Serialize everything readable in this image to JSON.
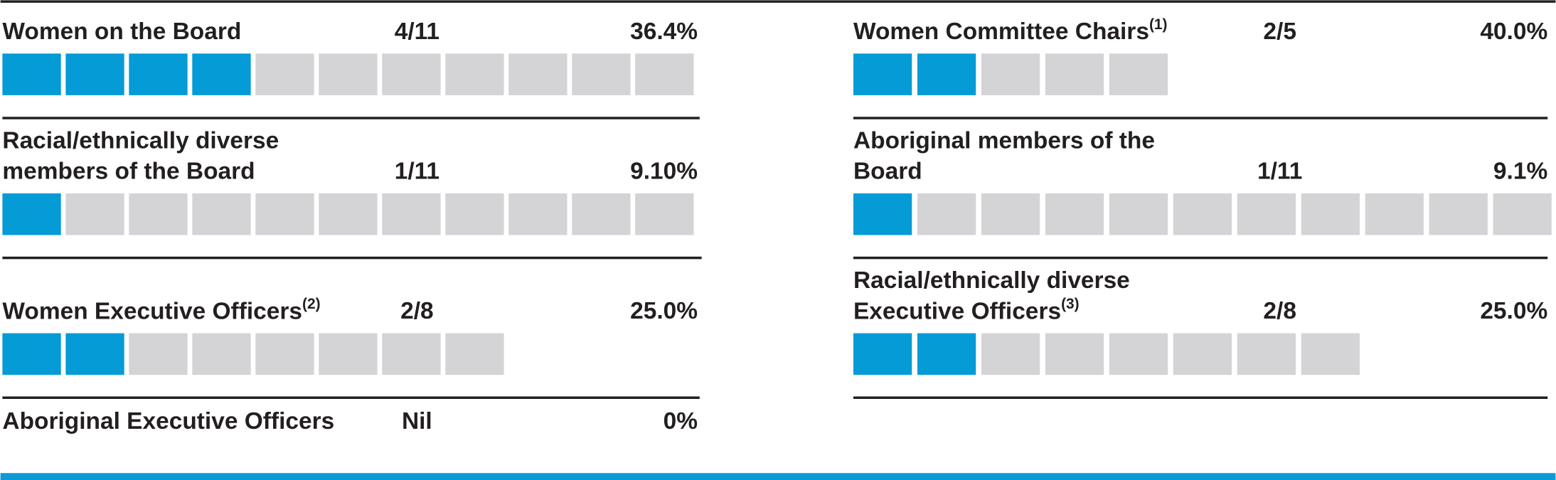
{
  "left": [
    {
      "label": [
        "Women on the Board"
      ],
      "ratio": "4/11",
      "percent": "36.4%",
      "filled": 4,
      "total": 11
    },
    {
      "label": [
        "Racial/ethnically diverse",
        "members of the Board"
      ],
      "ratio": "1/11",
      "percent": "9.10%",
      "filled": 1,
      "total": 11
    },
    {
      "label": [
        "Women Executive Officers"
      ],
      "note": "(2)",
      "ratio": "2/8",
      "percent": "25.0%",
      "filled": 2,
      "total": 8
    },
    {
      "label": [
        "Aboriginal Executive Officers"
      ],
      "ratio": "Nil",
      "percent": "0%"
    }
  ],
  "right": [
    {
      "label": [
        "Women Committee Chairs"
      ],
      "note": "(1)",
      "ratio": "2/5",
      "percent": "40.0%",
      "filled": 2,
      "total": 5
    },
    {
      "label": [
        "Aboriginal members of the",
        "Board"
      ],
      "ratio": "1/11",
      "percent": "9.1%",
      "filled": 1,
      "total": 11
    },
    {
      "label": [
        "Racial/ethnically diverse",
        "Executive Officers"
      ],
      "note": "(3)",
      "ratio": "2/8",
      "percent": "25.0%",
      "filled": 2,
      "total": 8
    }
  ]
}
